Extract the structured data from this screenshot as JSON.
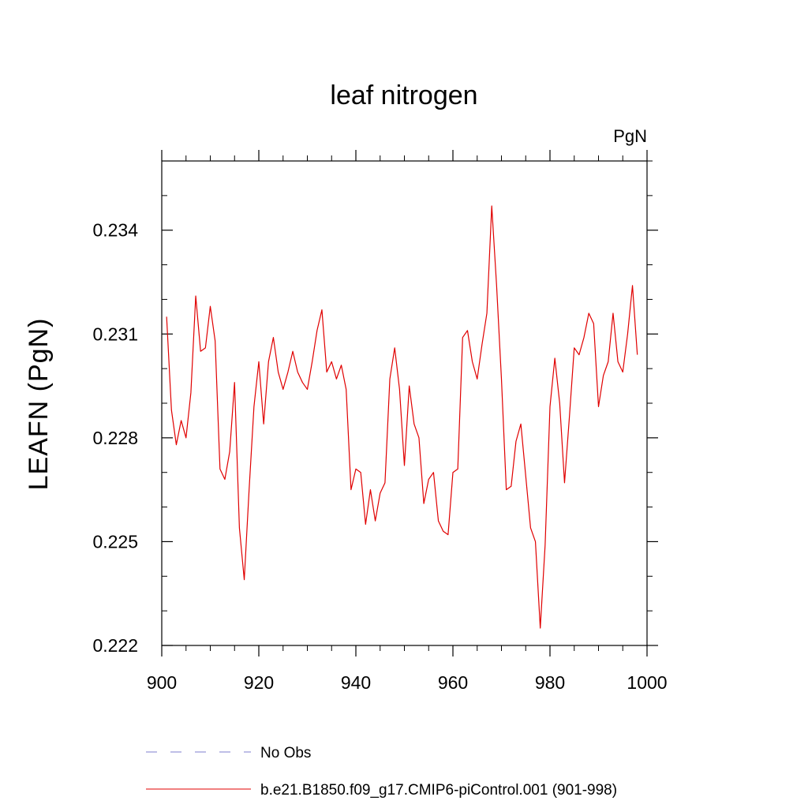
{
  "chart_data": {
    "type": "line",
    "title": "leaf nitrogen",
    "units_label": "PgN",
    "xlabel": "",
    "ylabel": "LEAFN  (PgN)",
    "xlim": [
      900,
      1000
    ],
    "ylim": [
      0.222,
      0.236
    ],
    "x_ticks": [
      900,
      920,
      940,
      960,
      980,
      1000
    ],
    "x_tick_labels": [
      "900",
      "920",
      "940",
      "960",
      "980",
      "1000"
    ],
    "y_ticks": [
      0.222,
      0.225,
      0.228,
      0.231,
      0.234
    ],
    "y_tick_labels": [
      "0.222",
      "0.225",
      "0.228",
      "0.231",
      "0.234"
    ],
    "grid": false,
    "legend_position": "bottom",
    "series": [
      {
        "name": "No Obs",
        "color": "#7f7fcf",
        "style": "dashed",
        "x": [],
        "y": []
      },
      {
        "name": "b.e21.B1850.f09_g17.CMIP6-piControl.001 (901-998)",
        "color": "#e00000",
        "style": "solid",
        "x": [
          901,
          902,
          903,
          904,
          905,
          906,
          907,
          908,
          909,
          910,
          911,
          912,
          913,
          914,
          915,
          916,
          917,
          918,
          919,
          920,
          921,
          922,
          923,
          924,
          925,
          926,
          927,
          928,
          929,
          930,
          931,
          932,
          933,
          934,
          935,
          936,
          937,
          938,
          939,
          940,
          941,
          942,
          943,
          944,
          945,
          946,
          947,
          948,
          949,
          950,
          951,
          952,
          953,
          954,
          955,
          956,
          957,
          958,
          959,
          960,
          961,
          962,
          963,
          964,
          965,
          966,
          967,
          968,
          969,
          970,
          971,
          972,
          973,
          974,
          975,
          976,
          977,
          978,
          979,
          980,
          981,
          982,
          983,
          984,
          985,
          986,
          987,
          988,
          989,
          990,
          991,
          992,
          993,
          994,
          995,
          996,
          997,
          998
        ],
        "y": [
          0.2315,
          0.2288,
          0.2278,
          0.2285,
          0.228,
          0.2293,
          0.2321,
          0.2305,
          0.2306,
          0.2318,
          0.2308,
          0.2271,
          0.2268,
          0.2276,
          0.2296,
          0.2254,
          0.2239,
          0.2265,
          0.2289,
          0.2302,
          0.2284,
          0.2302,
          0.2309,
          0.2299,
          0.2294,
          0.2299,
          0.2305,
          0.2299,
          0.2296,
          0.2294,
          0.2302,
          0.2311,
          0.2317,
          0.2299,
          0.2302,
          0.2297,
          0.2301,
          0.2294,
          0.2265,
          0.2271,
          0.227,
          0.2255,
          0.2265,
          0.2256,
          0.2264,
          0.2267,
          0.2297,
          0.2306,
          0.2294,
          0.2272,
          0.2295,
          0.2284,
          0.228,
          0.2261,
          0.2268,
          0.227,
          0.2256,
          0.2253,
          0.2252,
          0.227,
          0.2271,
          0.2309,
          0.2311,
          0.2302,
          0.2297,
          0.2307,
          0.2316,
          0.2347,
          0.2324,
          0.2297,
          0.2265,
          0.2266,
          0.2279,
          0.2284,
          0.2269,
          0.2254,
          0.225,
          0.2225,
          0.2249,
          0.2289,
          0.2303,
          0.229,
          0.2267,
          0.2286,
          0.2306,
          0.2304,
          0.2309,
          0.2316,
          0.2313,
          0.2289,
          0.2298,
          0.2302,
          0.2316,
          0.2302,
          0.2299,
          0.231,
          0.2324,
          0.2304
        ]
      }
    ]
  }
}
